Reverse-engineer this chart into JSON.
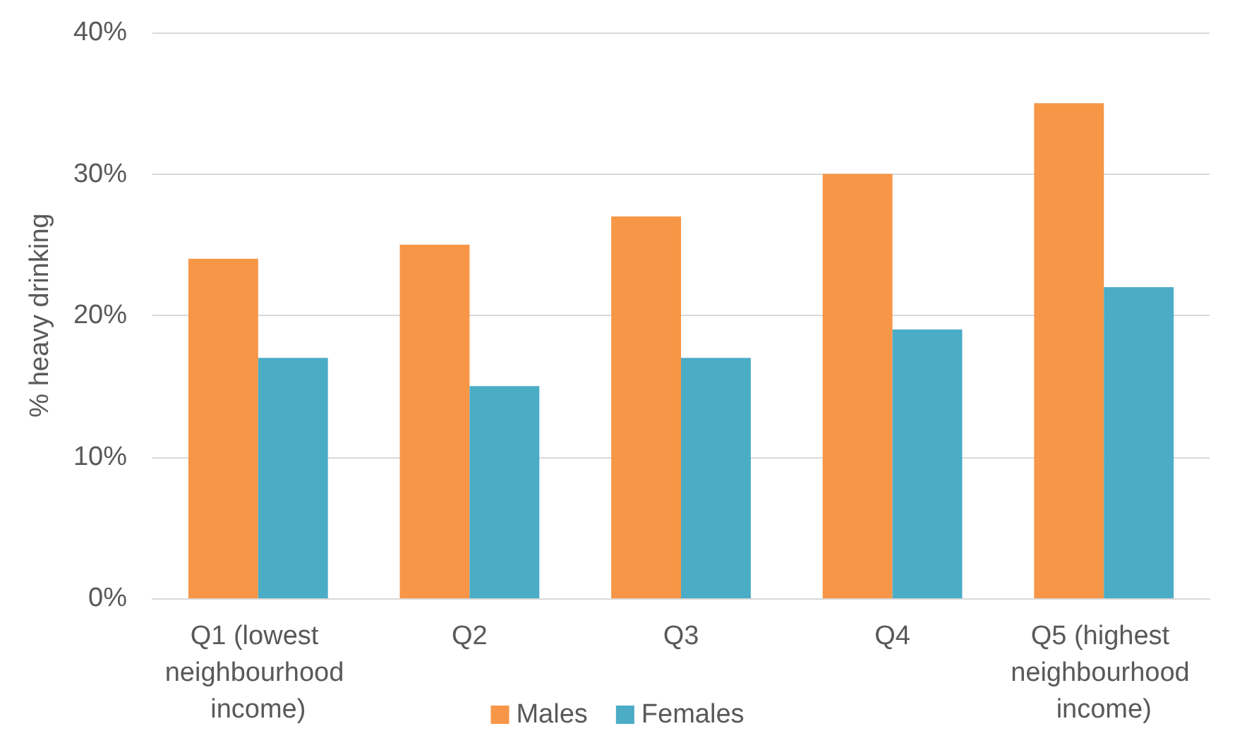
{
  "chart_data": {
    "type": "bar",
    "ylabel": "% heavy drinking",
    "categories": [
      "Q1 (lowest neighbourhood income)",
      "Q2",
      "Q3",
      "Q4",
      "Q5 (highest neighbourhood income)"
    ],
    "series": [
      {
        "name": "Males",
        "color": "#f79646",
        "values": [
          24,
          25,
          27,
          30,
          35
        ]
      },
      {
        "name": "Females",
        "color": "#4bacc6",
        "values": [
          17,
          15,
          17,
          19,
          22
        ]
      }
    ],
    "ylim": [
      0,
      40
    ],
    "yticks": [
      {
        "value": 0,
        "label": "0%"
      },
      {
        "value": 10,
        "label": "10%"
      },
      {
        "value": 20,
        "label": "20%"
      },
      {
        "value": 30,
        "label": "30%"
      },
      {
        "value": 40,
        "label": "40%"
      }
    ],
    "grid": "y",
    "legend": "bottom"
  }
}
